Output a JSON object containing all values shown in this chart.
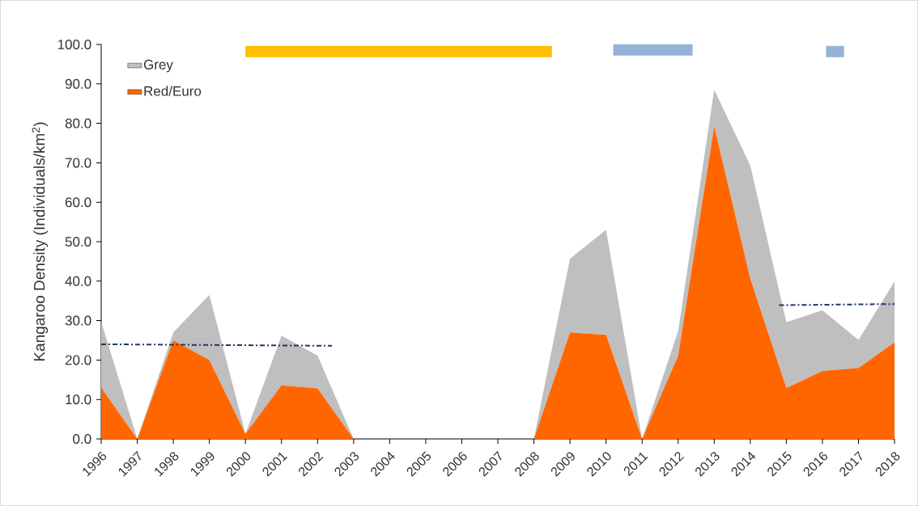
{
  "chart_data": {
    "type": "area",
    "stacked": true,
    "ylabel": "Kangaroo Density (Individuals/km$^{2}$)",
    "x": [
      1996,
      1997,
      1998,
      1999,
      2000,
      2001,
      2002,
      2003,
      2004,
      2005,
      2006,
      2007,
      2008,
      2009,
      2010,
      2011,
      2012,
      2013,
      2014,
      2015,
      2016,
      2017,
      2018
    ],
    "series": [
      {
        "name": "Red/Euro",
        "color": "#ff6600",
        "values": [
          13.0,
          0,
          25.0,
          20.0,
          1.3,
          13.6,
          12.8,
          0,
          0,
          0,
          0,
          0,
          0,
          27.0,
          26.4,
          0,
          21.1,
          79.2,
          40.6,
          12.9,
          17.2,
          18.0,
          24.5
        ]
      },
      {
        "name": "Grey",
        "color": "#bfbfbf",
        "values": [
          16.7,
          0,
          2.0,
          16.5,
          0,
          12.6,
          8.3,
          0,
          0,
          0,
          0,
          0,
          0,
          18.7,
          26.6,
          0,
          6.2,
          9.3,
          28.7,
          16.7,
          15.4,
          7.1,
          15.4
        ]
      },
      {
        "type": "line",
        "color": "#1f3864",
        "line_style": "dashdot",
        "x": [
          1996,
          2002.4
        ],
        "values": [
          24.0,
          23.6
        ]
      },
      {
        "type": "line",
        "color": "#1f3864",
        "line_style": "dashdot",
        "x": [
          2014.8,
          2018
        ],
        "values": [
          33.9,
          34.2
        ]
      },
      {
        "type": "line",
        "color": "#ffc000",
        "line_style": "solid",
        "x": [
          2000,
          2008.5
        ],
        "values": [
          98.2,
          98.2
        ]
      },
      {
        "type": "line",
        "color": "#95b3d7",
        "line_style": "solid",
        "x": [
          2010.2,
          2012.4
        ],
        "values": [
          98.6,
          98.6
        ]
      },
      {
        "type": "line",
        "color": "#95b3d7",
        "line_style": "solid",
        "x": [
          2016.1,
          2016.6
        ],
        "values": [
          98.2,
          98.2
        ]
      }
    ],
    "xlim": [
      1996,
      2018
    ],
    "xticks": [
      1996,
      1997,
      1998,
      1999,
      2000,
      2001,
      2002,
      2003,
      2004,
      2005,
      2006,
      2007,
      2008,
      2009,
      2010,
      2011,
      2012,
      2013,
      2014,
      2015,
      2016,
      2017,
      2018
    ],
    "ylim": [
      0,
      100
    ],
    "yticks": [
      {
        "value": 0,
        "label": "0.0"
      },
      {
        "value": 10,
        "label": "10.0"
      },
      {
        "value": 20,
        "label": "20.0"
      },
      {
        "value": 30,
        "label": "30.0"
      },
      {
        "value": 40,
        "label": "40.0"
      },
      {
        "value": 50,
        "label": "50.0"
      },
      {
        "value": 60,
        "label": "60.0"
      },
      {
        "value": 70,
        "label": "70.0"
      },
      {
        "value": 80,
        "label": "80.0"
      },
      {
        "value": 90,
        "label": "90.0"
      },
      {
        "value": 100,
        "label": "100.0"
      }
    ],
    "legend": "top left"
  }
}
